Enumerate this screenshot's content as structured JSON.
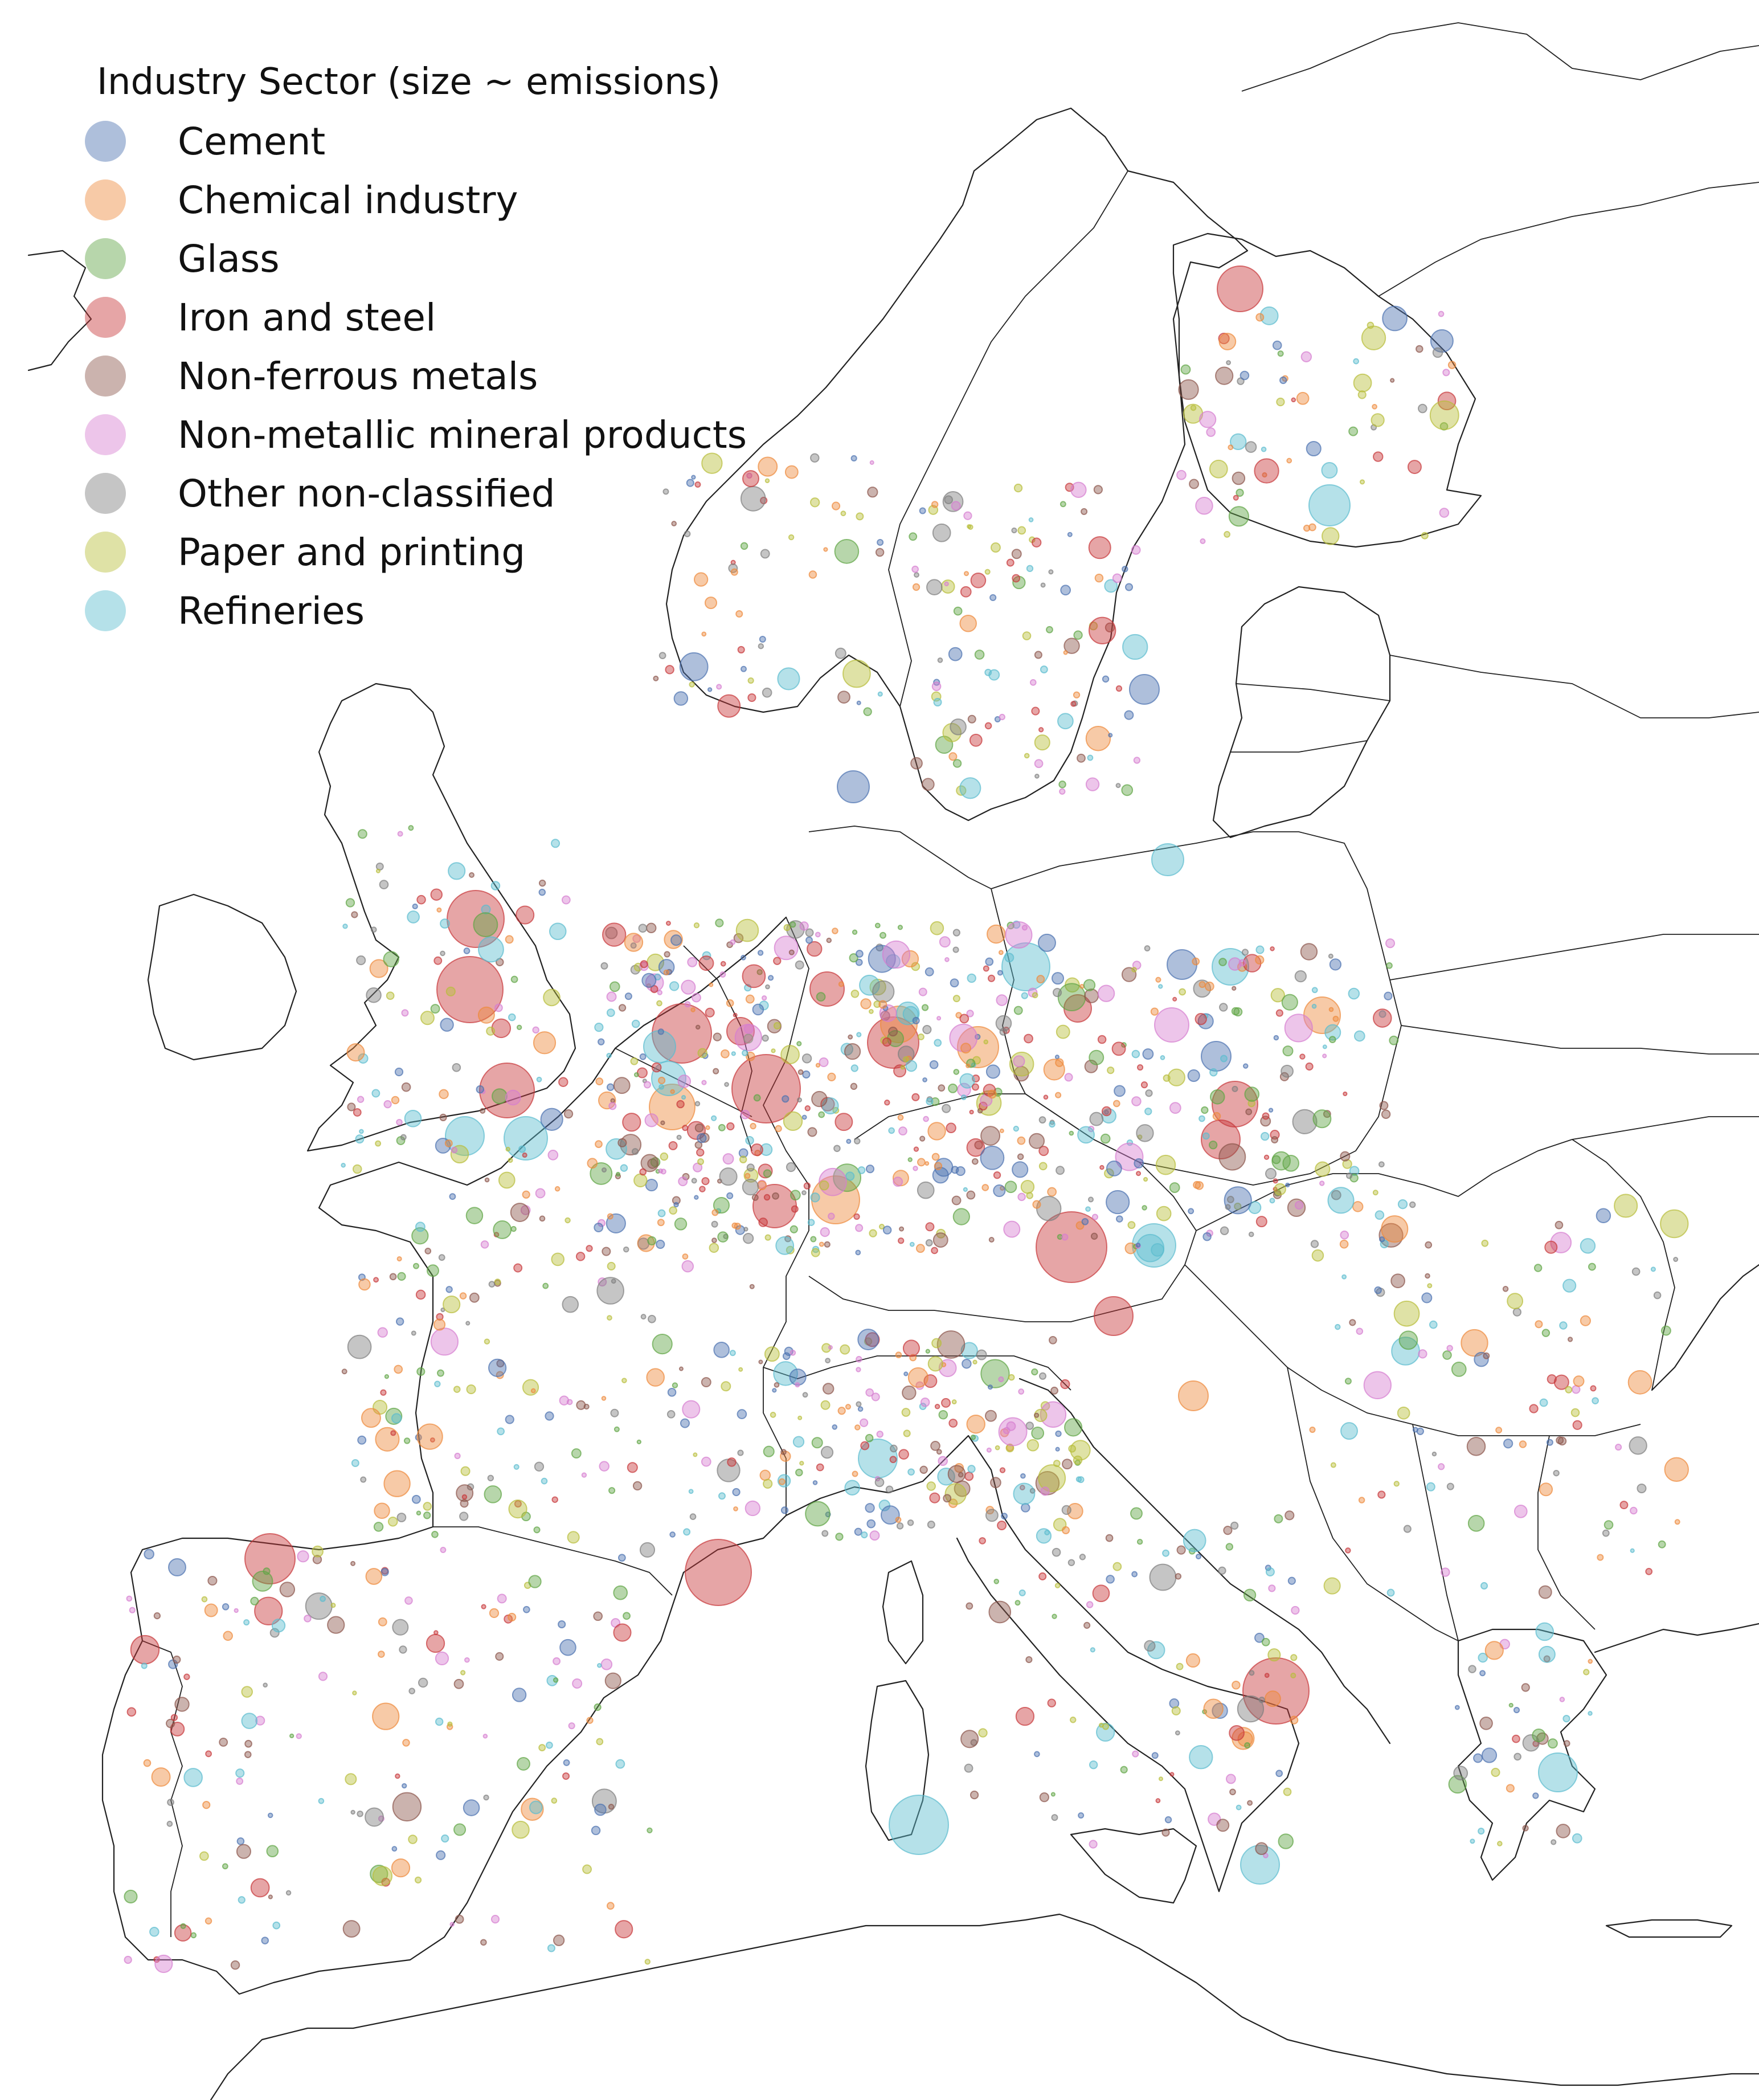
{
  "legend": {
    "title": "Industry Sector (size ~ emissions)",
    "items": [
      {
        "label": "Cement",
        "color": "#4c72b0"
      },
      {
        "label": "Chemical industry",
        "color": "#ee8a3c"
      },
      {
        "label": "Glass",
        "color": "#5fa544"
      },
      {
        "label": "Iron and steel",
        "color": "#c8373a"
      },
      {
        "label": "Non-ferrous metals",
        "color": "#8c564b"
      },
      {
        "label": "Non-metallic mineral products",
        "color": "#d67ed0"
      },
      {
        "label": "Other non-classified",
        "color": "#7f7f7f"
      },
      {
        "label": "Paper and printing",
        "color": "#b8be3a"
      },
      {
        "label": "Refineries",
        "color": "#5bbccf"
      }
    ]
  },
  "map": {
    "region": "Europe",
    "size_encoding": "emissions",
    "marker_opacity": 0.45,
    "basemap": "coastlines and country borders, no fill"
  }
}
